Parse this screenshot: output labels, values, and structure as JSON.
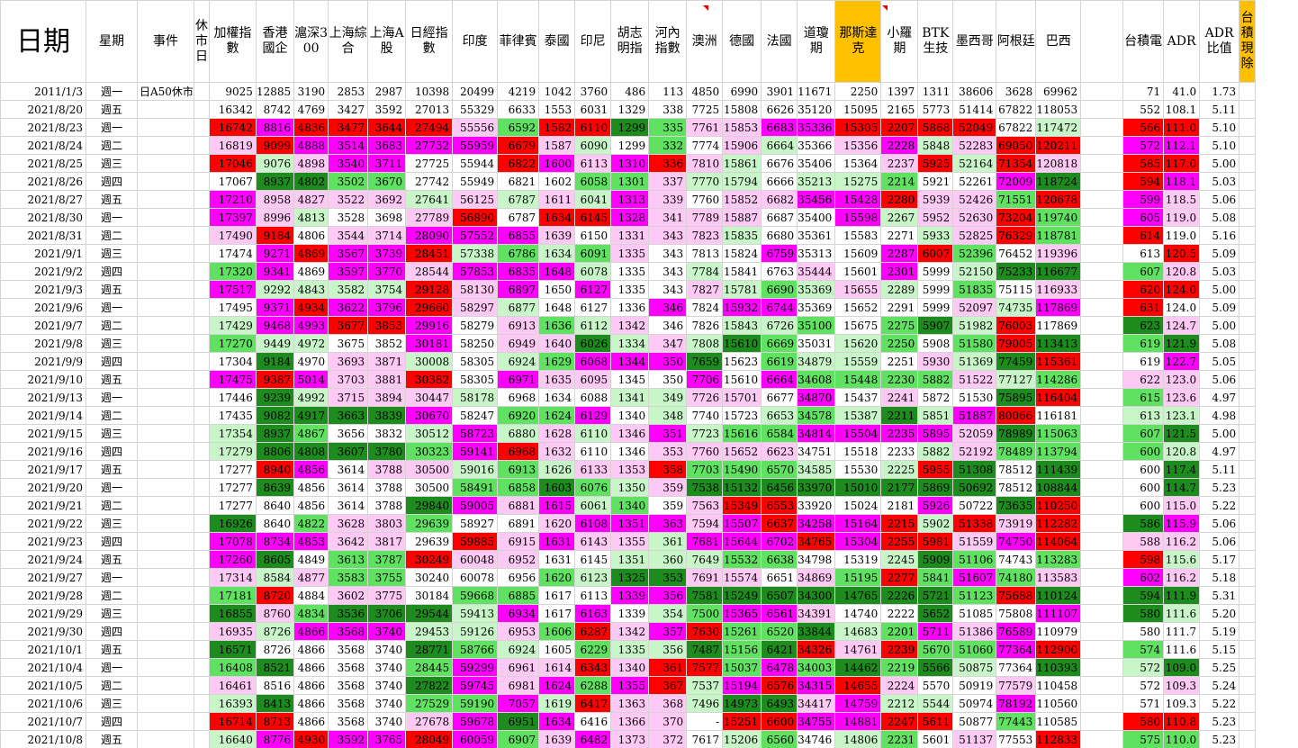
{
  "colors": {
    "dark_green": "#1e8b1e",
    "mid_green": "#61e161",
    "light_green": "#c9f6c9",
    "magenta": "#ff00ff",
    "pink": "#ffc9f5",
    "red": "#ff0000",
    "yellow": "#ffff00",
    "orange": "#ffc000"
  },
  "headers": [
    "日期",
    "星期",
    "事件",
    "休市日",
    "加權指數",
    "香港國企",
    "滬深300",
    "上海綜合",
    "上海A股",
    "日經指數",
    "印度",
    "菲律賓",
    "泰國",
    "印尼",
    "胡志明指",
    "河內指數",
    "澳洲",
    "德國",
    "法國",
    "道瓊期",
    "那斯達克",
    "小羅期",
    "BTK生技",
    "墨西哥",
    "阿根廷",
    "巴西",
    "",
    "台積電",
    "ADR",
    "ADR比值",
    "台積現除"
  ],
  "rows": [
    [
      "2011/1/3",
      "週一",
      "日A50休市",
      "",
      "9025",
      "12885",
      "3190",
      "2853",
      "2987",
      "10398",
      "20499",
      "4219",
      "1042",
      "3760",
      "486",
      "113",
      "4850",
      "6990",
      "3901",
      "11671",
      "2250",
      "1397",
      "1311",
      "38606",
      "3628",
      "69962",
      "",
      "71",
      "41.0",
      "1.73"
    ],
    [
      "2021/8/20",
      "週五",
      "",
      "",
      "16342",
      "8742",
      "4769",
      "3427",
      "3592",
      "27013",
      "55329",
      "6633",
      "1553",
      "6031",
      "1329",
      "338",
      "7725",
      "15808",
      "6626",
      "35120",
      "15095",
      "2165",
      "5773",
      "51414",
      "67822",
      "118053",
      "",
      "552",
      "108.1",
      "5.11"
    ],
    [
      "2021/8/23",
      "週一",
      "",
      "",
      "16742",
      "8816",
      "4836",
      "3477",
      "3644",
      "27494",
      "55556",
      "6592",
      "1582",
      "6110",
      "1299",
      "335",
      "7761",
      "15853",
      "6683",
      "35336",
      "15305",
      "2207",
      "5868",
      "52049",
      "67822",
      "117472",
      "",
      "566",
      "111.0",
      "5.10"
    ],
    [
      "2021/8/24",
      "週二",
      "",
      "",
      "16819",
      "9099",
      "4888",
      "3514",
      "3683",
      "27732",
      "55959",
      "6679",
      "1587",
      "6090",
      "1299",
      "332",
      "7774",
      "15906",
      "6664",
      "35366",
      "15356",
      "2228",
      "5848",
      "52283",
      "69050",
      "120211",
      "",
      "572",
      "112.1",
      "5.10"
    ],
    [
      "2021/8/25",
      "週三",
      "",
      "",
      "17046",
      "9076",
      "4898",
      "3540",
      "3711",
      "27725",
      "55944",
      "6822",
      "1600",
      "6113",
      "1310",
      "336",
      "7810",
      "15861",
      "6676",
      "35406",
      "15364",
      "2237",
      "5925",
      "52164",
      "71354",
      "120818",
      "",
      "585",
      "117.0",
      "5.00"
    ],
    [
      "2021/8/26",
      "週四",
      "",
      "",
      "17067",
      "8937",
      "4802",
      "3502",
      "3670",
      "27742",
      "55949",
      "6821",
      "1602",
      "6058",
      "1301",
      "337",
      "7770",
      "15794",
      "6666",
      "35213",
      "15275",
      "2214",
      "5921",
      "52261",
      "72009",
      "118724",
      "",
      "594",
      "118.1",
      "5.03"
    ],
    [
      "2021/8/27",
      "週五",
      "",
      "",
      "17210",
      "8958",
      "4827",
      "3522",
      "3692",
      "27641",
      "56125",
      "6787",
      "1611",
      "6041",
      "1313",
      "339",
      "7760",
      "15852",
      "6682",
      "35456",
      "15428",
      "2280",
      "5939",
      "52426",
      "71551",
      "120678",
      "",
      "599",
      "118.5",
      "5.06"
    ],
    [
      "2021/8/30",
      "週一",
      "",
      "",
      "17397",
      "8996",
      "4813",
      "3528",
      "3698",
      "27789",
      "56890",
      "6787",
      "1634",
      "6145",
      "1328",
      "341",
      "7789",
      "15887",
      "6687",
      "35400",
      "15598",
      "2267",
      "5952",
      "52630",
      "73204",
      "119740",
      "",
      "605",
      "119.0",
      "5.08"
    ],
    [
      "2021/8/31",
      "週二",
      "",
      "",
      "17490",
      "9184",
      "4806",
      "3544",
      "3714",
      "28090",
      "57552",
      "6855",
      "1639",
      "6150",
      "1331",
      "343",
      "7823",
      "15835",
      "6680",
      "35361",
      "15583",
      "2271",
      "5933",
      "52825",
      "76329",
      "118781",
      "",
      "614",
      "119.0",
      "5.16"
    ],
    [
      "2021/9/1",
      "週三",
      "",
      "",
      "17474",
      "9271",
      "4869",
      "3567",
      "3739",
      "28451",
      "57338",
      "6786",
      "1634",
      "6091",
      "1335",
      "343",
      "7813",
      "15824",
      "6759",
      "35313",
      "15609",
      "2287",
      "6007",
      "52396",
      "76452",
      "119396",
      "",
      "613",
      "120.5",
      "5.09"
    ],
    [
      "2021/9/2",
      "週四",
      "",
      "",
      "17320",
      "9341",
      "4869",
      "3597",
      "3770",
      "28544",
      "57853",
      "6835",
      "1648",
      "6078",
      "1335",
      "343",
      "7784",
      "15841",
      "6763",
      "35444",
      "15601",
      "2301",
      "5999",
      "52150",
      "75233",
      "116677",
      "",
      "607",
      "120.8",
      "5.03"
    ],
    [
      "2021/9/3",
      "週五",
      "",
      "",
      "17517",
      "9292",
      "4843",
      "3582",
      "3754",
      "29128",
      "58130",
      "6897",
      "1650",
      "6127",
      "1335",
      "343",
      "7827",
      "15781",
      "6690",
      "35369",
      "15655",
      "2289",
      "5999",
      "51835",
      "75115",
      "116933",
      "",
      "620",
      "124.0",
      "5.00"
    ],
    [
      "2021/9/6",
      "週一",
      "",
      "",
      "17495",
      "9371",
      "4934",
      "3622",
      "3796",
      "29660",
      "58297",
      "6877",
      "1648",
      "6127",
      "1336",
      "346",
      "7824",
      "15932",
      "6744",
      "35369",
      "15652",
      "2291",
      "5999",
      "52097",
      "74735",
      "117869",
      "",
      "631",
      "124.0",
      "5.09"
    ],
    [
      "2021/9/7",
      "週二",
      "",
      "",
      "17429",
      "9468",
      "4993",
      "3677",
      "3853",
      "29916",
      "58279",
      "6913",
      "1636",
      "6112",
      "1342",
      "346",
      "7826",
      "15843",
      "6726",
      "35100",
      "15675",
      "2275",
      "5907",
      "51982",
      "76003",
      "117869",
      "",
      "623",
      "124.7",
      "5.00"
    ],
    [
      "2021/9/8",
      "週三",
      "",
      "",
      "17270",
      "9449",
      "4972",
      "3675",
      "3852",
      "30181",
      "58250",
      "6949",
      "1640",
      "6026",
      "1334",
      "347",
      "7808",
      "15610",
      "6669",
      "35031",
      "15620",
      "2250",
      "5908",
      "51580",
      "79005",
      "113413",
      "",
      "619",
      "121.9",
      "5.08"
    ],
    [
      "2021/9/9",
      "週四",
      "",
      "",
      "17304",
      "9184",
      "4970",
      "3693",
      "3871",
      "30008",
      "58305",
      "6924",
      "1629",
      "6068",
      "1344",
      "350",
      "7659",
      "15623",
      "6619",
      "34879",
      "15559",
      "2251",
      "5930",
      "51369",
      "77459",
      "115361",
      "",
      "619",
      "122.7",
      "5.05"
    ],
    [
      "2021/9/10",
      "週五",
      "",
      "",
      "17475",
      "9387",
      "5014",
      "3703",
      "3881",
      "30382",
      "58305",
      "6971",
      "1635",
      "6095",
      "1345",
      "350",
      "7706",
      "15610",
      "6664",
      "34608",
      "15448",
      "2230",
      "5882",
      "51522",
      "77127",
      "114286",
      "",
      "622",
      "123.0",
      "5.06"
    ],
    [
      "2021/9/13",
      "週一",
      "",
      "",
      "17446",
      "9239",
      "4992",
      "3715",
      "3894",
      "30447",
      "58178",
      "6968",
      "1634",
      "6088",
      "1341",
      "349",
      "7726",
      "15701",
      "6677",
      "34870",
      "15437",
      "2241",
      "5872",
      "51530",
      "75895",
      "116404",
      "",
      "615",
      "123.6",
      "4.97"
    ],
    [
      "2021/9/14",
      "週二",
      "",
      "",
      "17435",
      "9082",
      "4917",
      "3663",
      "3839",
      "30670",
      "58247",
      "6920",
      "1624",
      "6129",
      "1340",
      "348",
      "7740",
      "15723",
      "6653",
      "34578",
      "15387",
      "2211",
      "5851",
      "51887",
      "80066",
      "116181",
      "",
      "613",
      "123.1",
      "4.98"
    ],
    [
      "2021/9/15",
      "週三",
      "",
      "",
      "17354",
      "8937",
      "4867",
      "3656",
      "3832",
      "30512",
      "58723",
      "6880",
      "1628",
      "6110",
      "1346",
      "351",
      "7723",
      "15616",
      "6584",
      "34814",
      "15504",
      "2235",
      "5895",
      "52059",
      "78989",
      "115063",
      "",
      "607",
      "121.5",
      "5.00"
    ],
    [
      "2021/9/16",
      "週四",
      "",
      "",
      "17279",
      "8806",
      "4808",
      "3607",
      "3780",
      "30323",
      "59141",
      "6968",
      "1632",
      "6110",
      "1346",
      "353",
      "7760",
      "15652",
      "6623",
      "34751",
      "15518",
      "2233",
      "5882",
      "52192",
      "78489",
      "113794",
      "",
      "600",
      "120.8",
      "4.97"
    ],
    [
      "2021/9/17",
      "週五",
      "",
      "",
      "17277",
      "8940",
      "4856",
      "3614",
      "3788",
      "30500",
      "59016",
      "6913",
      "1626",
      "6133",
      "1353",
      "358",
      "7703",
      "15490",
      "6570",
      "34585",
      "15530",
      "2225",
      "5955",
      "51308",
      "78512",
      "111439",
      "",
      "600",
      "117.4",
      "5.11"
    ],
    [
      "2021/9/20",
      "週一",
      "",
      "",
      "17277",
      "8639",
      "4856",
      "3614",
      "3788",
      "30500",
      "58491",
      "6858",
      "1603",
      "6076",
      "1350",
      "359",
      "7538",
      "15132",
      "6456",
      "33970",
      "15010",
      "2177",
      "5869",
      "50692",
      "78512",
      "108844",
      "",
      "600",
      "114.7",
      "5.23"
    ],
    [
      "2021/9/21",
      "週二",
      "",
      "",
      "17277",
      "8640",
      "4856",
      "3614",
      "3788",
      "29840",
      "59005",
      "6881",
      "1615",
      "6061",
      "1340",
      "359",
      "7563",
      "15349",
      "6553",
      "33920",
      "15024",
      "2181",
      "5926",
      "50722",
      "73635",
      "110250",
      "",
      "600",
      "115.0",
      "5.22"
    ],
    [
      "2021/9/22",
      "週三",
      "",
      "",
      "16926",
      "8640",
      "4822",
      "3628",
      "3803",
      "29639",
      "58927",
      "6891",
      "1620",
      "6108",
      "1351",
      "363",
      "7594",
      "15507",
      "6637",
      "34258",
      "15164",
      "2215",
      "5902",
      "51338",
      "73919",
      "112282",
      "",
      "586",
      "115.9",
      "5.06"
    ],
    [
      "2021/9/23",
      "週四",
      "",
      "",
      "17078",
      "8734",
      "4853",
      "3642",
      "3817",
      "29639",
      "59885",
      "6915",
      "1631",
      "6143",
      "1355",
      "361",
      "7681",
      "15644",
      "6702",
      "34765",
      "15304",
      "2255",
      "5981",
      "51559",
      "74750",
      "114064",
      "",
      "588",
      "116.2",
      "5.06"
    ],
    [
      "2021/9/24",
      "週五",
      "",
      "",
      "17260",
      "8605",
      "4849",
      "3613",
      "3787",
      "30249",
      "60048",
      "6952",
      "1631",
      "6145",
      "1351",
      "360",
      "7649",
      "15532",
      "6638",
      "34798",
      "15319",
      "2245",
      "5909",
      "51106",
      "74743",
      "113283",
      "",
      "598",
      "115.6",
      "5.17"
    ],
    [
      "2021/9/27",
      "週一",
      "",
      "",
      "17314",
      "8584",
      "4877",
      "3583",
      "3755",
      "30240",
      "60078",
      "6956",
      "1620",
      "6123",
      "1325",
      "353",
      "7691",
      "15574",
      "6651",
      "34869",
      "15195",
      "2277",
      "5841",
      "51607",
      "74180",
      "113583",
      "",
      "602",
      "116.2",
      "5.18"
    ],
    [
      "2021/9/28",
      "週二",
      "",
      "",
      "17181",
      "8720",
      "4884",
      "3602",
      "3775",
      "30184",
      "59668",
      "6885",
      "1617",
      "6113",
      "1339",
      "356",
      "7581",
      "15249",
      "6507",
      "34300",
      "14765",
      "2226",
      "5721",
      "51123",
      "75688",
      "110124",
      "",
      "594",
      "111.9",
      "5.31"
    ],
    [
      "2021/9/29",
      "週三",
      "",
      "",
      "16855",
      "8760",
      "4834",
      "3536",
      "3706",
      "29544",
      "59413",
      "6934",
      "1617",
      "6163",
      "1339",
      "354",
      "7500",
      "15365",
      "6561",
      "34391",
      "14740",
      "2222",
      "5652",
      "51085",
      "75808",
      "111107",
      "",
      "580",
      "111.6",
      "5.20"
    ],
    [
      "2021/9/30",
      "週四",
      "",
      "",
      "16935",
      "8726",
      "4866",
      "3568",
      "3740",
      "29453",
      "59126",
      "6953",
      "1606",
      "6287",
      "1342",
      "357",
      "7630",
      "15261",
      "6520",
      "33844",
      "14683",
      "2201",
      "5711",
      "51386",
      "76589",
      "110979",
      "",
      "580",
      "111.7",
      "5.19"
    ],
    [
      "2021/10/1",
      "週五",
      "",
      "",
      "16571",
      "8726",
      "4866",
      "3568",
      "3740",
      "28771",
      "58766",
      "6924",
      "1605",
      "6229",
      "1335",
      "356",
      "7487",
      "15156",
      "6421",
      "34326",
      "14761",
      "2239",
      "5670",
      "51060",
      "77364",
      "112900",
      "",
      "574",
      "111.6",
      "5.15"
    ],
    [
      "2021/10/4",
      "週一",
      "",
      "",
      "16408",
      "8521",
      "4866",
      "3568",
      "3740",
      "28445",
      "59299",
      "6961",
      "1614",
      "6343",
      "1340",
      "361",
      "7577",
      "15037",
      "6478",
      "34003",
      "14462",
      "2219",
      "5566",
      "50875",
      "77364",
      "110393",
      "",
      "572",
      "109.0",
      "5.25"
    ],
    [
      "2021/10/5",
      "週二",
      "",
      "",
      "16461",
      "8516",
      "4866",
      "3568",
      "3740",
      "27822",
      "59745",
      "6981",
      "1624",
      "6288",
      "1355",
      "367",
      "7537",
      "15194",
      "6576",
      "34315",
      "14655",
      "2224",
      "5570",
      "50919",
      "77579",
      "110458",
      "",
      "572",
      "109.3",
      "5.24"
    ],
    [
      "2021/10/6",
      "週三",
      "",
      "",
      "16393",
      "8413",
      "4866",
      "3568",
      "3740",
      "27529",
      "59190",
      "7057",
      "1619",
      "6417",
      "1363",
      "368",
      "7496",
      "14973",
      "6493",
      "34417",
      "14759",
      "2212",
      "5544",
      "50974",
      "78192",
      "110560",
      "",
      "571",
      "109.3",
      "5.22"
    ],
    [
      "2021/10/7",
      "週四",
      "",
      "",
      "16714",
      "8713",
      "4866",
      "3568",
      "3740",
      "27678",
      "59678",
      "6951",
      "1634",
      "6416",
      "1366",
      "370",
      "-",
      "15251",
      "6600",
      "34755",
      "14881",
      "2247",
      "5611",
      "50877",
      "77443",
      "110585",
      "",
      "580",
      "110.8",
      "5.23"
    ],
    [
      "2021/10/8",
      "週五",
      "",
      "",
      "16640",
      "8776",
      "4930",
      "3592",
      "3765",
      "28049",
      "60059",
      "6907",
      "1639",
      "6482",
      "1373",
      "372",
      "7617",
      "15206",
      "6560",
      "34746",
      "14806",
      "2231",
      "5601",
      "51137",
      "77553",
      "112833",
      "",
      "575",
      "110.0",
      "5.23"
    ]
  ],
  "fills": [
    "",
    "dddggkkk.gk.k.gg..ggRg.kg..",
    "p.......k.p.g......Rp.Yp.....",
    "p......R..p.g.g......R.p.R.",
    "p..kk....pp........R.pppp..",
    "p.......pp.......Y....p.R..",
    "p.......Rp.p.p......RkpRp.p",
    "p....pR..Y.p.p.......Rpp.RR.",
    "p...kkpR.pR.p.p.......R.p.RR.",
    "p.p.kkkp..p.p.p.......R.RpR..",
    "p.p.kkpR.R.p.YY......R.R..g",
    "p.p.......Rk.R.YYk.g....Rp.p..",
    "p.p.kkRR..k.p.p.....YR.Y.p.p.",
    "p.p.RRR..k..p.R.....gR..p.p.R",
    "g.....R.....k.p.R..gg..g.gRd",
    "g.p.RR.Y...p.R.g.gg.....g..Y",
    "p.pkRRR.Yk.p.......gg.gg.g...",
    "p...RR.R..p.......gg.g.g.p..",
    "p.p.....Rpg...p.gg.....ggp.RR..",
    "p.p.....R..pg....R.gg.........",
    "p.p.....pR..........g.....g.",
    "Y.d.Y.Y.Y..Y.......p.R.gggg..Y.....gg.....",
    "Y.d.YYYY.Y.dd.Y.....p.gdgggg.RR.....Y...",
    "Y.Y..Y.....p....p..dg....",
    "g.Y....Y....p..p..",
    "g.Y..........p...p...",
    "p.g.....R.p..p....p.....",
    "p.d.....R...p.d.d....p..",
    "...........d.g.........",
    "g...........R....d.g.....",
    "g.............R......Y..",
    "g.Y.Y.Y.Y.......R..d..........",
    "d.d.Y.Y.Y....p..R..dd...dd....",
    "g.g.Y.Y.Y..p.R..R..dd.dd....",
    "g.g.Y.Y.Y..p..R.....g.d...Y..",
    "gd..Y.Y.Y..R..R.....gg.d....g..",
    "p...Y.Y.Y..p.p.R..R...........",
    "p.Y.Y......p.R..R...........p."
  ]
}
